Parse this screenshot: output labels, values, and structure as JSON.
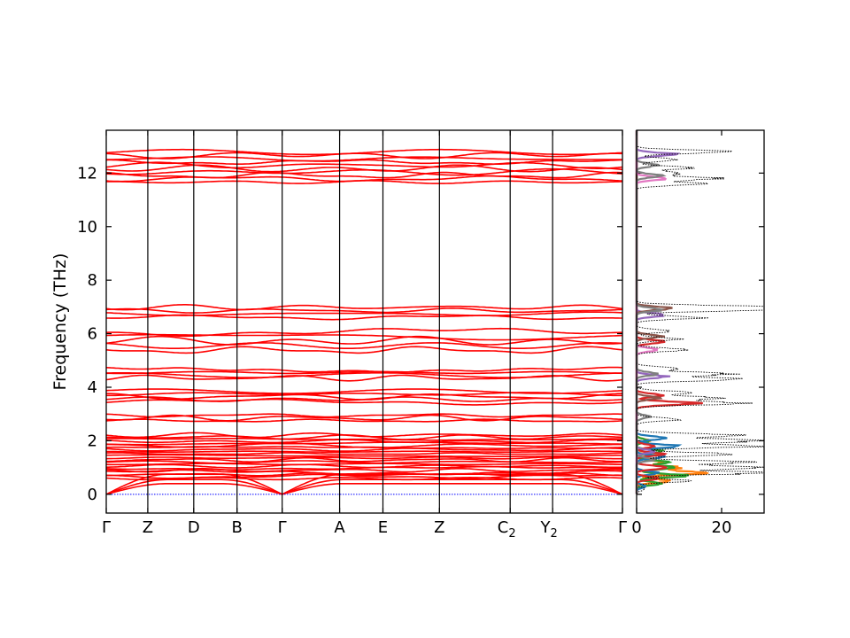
{
  "chart_data": [
    {
      "type": "line",
      "panel": "phonon-band-structure",
      "ylabel": "Frequency (THz)",
      "ylim": [
        -0.7,
        13.6
      ],
      "yticks": [
        0,
        2,
        4,
        6,
        8,
        10,
        12
      ],
      "ytick_labels": [
        "0",
        "2",
        "4",
        "6",
        "8",
        "10",
        "12"
      ],
      "xticks": [
        {
          "label": "Γ",
          "sub": "",
          "pos": 0.0
        },
        {
          "label": "Z",
          "sub": "",
          "pos": 0.0805
        },
        {
          "label": "D",
          "sub": "",
          "pos": 0.1695
        },
        {
          "label": "B",
          "sub": "",
          "pos": 0.2534
        },
        {
          "label": "Γ",
          "sub": "",
          "pos": 0.3408
        },
        {
          "label": "A",
          "sub": "",
          "pos": 0.4521
        },
        {
          "label": "E",
          "sub": "",
          "pos": 0.536
        },
        {
          "label": "Z",
          "sub": "",
          "pos": 0.6455
        },
        {
          "label": "C",
          "sub": "2",
          "pos": 0.7825
        },
        {
          "label": "Y",
          "sub": "2",
          "pos": 0.8647
        },
        {
          "label": "Γ",
          "sub": "",
          "pos": 1.0
        }
      ],
      "band_color": "#ff0000",
      "zero_line_color": "#0000ff",
      "band_groups": [
        {
          "range": [
            11.6,
            12.85
          ],
          "count": 10
        },
        {
          "range": [
            6.55,
            7.05
          ],
          "count": 4
        },
        {
          "range": [
            5.3,
            6.15
          ],
          "count": 5
        },
        {
          "range": [
            4.3,
            4.7
          ],
          "count": 4
        },
        {
          "range": [
            3.4,
            3.9
          ],
          "count": 5
        },
        {
          "range": [
            2.7,
            3.0
          ],
          "count": 3
        },
        {
          "range": [
            0.55,
            2.25
          ],
          "count": 22
        }
      ],
      "acoustic_branches": [
        {
          "gamma": 0.0,
          "zone": 0.4
        },
        {
          "gamma": 0.0,
          "zone": 0.55
        },
        {
          "gamma": 0.0,
          "zone": 0.75
        }
      ]
    },
    {
      "type": "line",
      "panel": "partial-density-of-states",
      "xlim": [
        0,
        30
      ],
      "xticks": [
        0,
        20
      ],
      "xtick_labels": [
        "0",
        "20"
      ],
      "ylim": [
        -0.7,
        13.6
      ],
      "total_dos_color": "#000000",
      "total_dos": {
        "y": [
          0.2,
          0.5,
          0.8,
          1.0,
          1.2,
          1.5,
          1.8,
          2.0,
          2.2,
          2.8,
          3.4,
          3.6,
          3.8,
          4.3,
          4.5,
          4.7,
          5.4,
          5.8,
          6.1,
          6.6,
          6.9,
          7.0,
          11.6,
          11.8,
          12.0,
          12.2,
          12.5,
          12.8
        ],
        "x": [
          2,
          12,
          30,
          28,
          26,
          24,
          30,
          29,
          25,
          10,
          25,
          20,
          12,
          26,
          22,
          10,
          12,
          10,
          8,
          15,
          30,
          27,
          15,
          19,
          10,
          13,
          10,
          22
        ]
      },
      "projected_dos": [
        {
          "color": "#ff7f0e",
          "y": [
            0.5,
            0.8,
            1.0,
            1.2,
            1.5,
            2.0
          ],
          "x": [
            8,
            17,
            10,
            6,
            5,
            3
          ]
        },
        {
          "color": "#2ca02c",
          "y": [
            0.4,
            0.7,
            1.0,
            1.2,
            1.6,
            2.0
          ],
          "x": [
            6,
            12,
            9,
            7,
            6,
            3
          ]
        },
        {
          "color": "#1f77b4",
          "y": [
            0.3,
            0.8,
            1.4,
            1.8,
            2.1
          ],
          "x": [
            2,
            5,
            6,
            10,
            7
          ]
        },
        {
          "color": "#d62728",
          "y": [
            0.6,
            1.0,
            1.5,
            1.8,
            3.4,
            3.7,
            5.7
          ],
          "x": [
            5,
            7,
            6,
            4,
            14,
            6,
            7
          ]
        },
        {
          "color": "#9467bd",
          "y": [
            1.6,
            4.4,
            6.7,
            12.7
          ],
          "x": [
            4,
            7,
            7,
            9
          ]
        },
        {
          "color": "#8c564b",
          "y": [
            3.6,
            5.9,
            6.95
          ],
          "x": [
            5,
            6,
            8
          ]
        },
        {
          "color": "#e377c2",
          "y": [
            5.4,
            11.8
          ],
          "x": [
            5,
            7
          ]
        },
        {
          "color": "#7f7f7f",
          "y": [
            1.3,
            2.9,
            4.5,
            6.9,
            11.9,
            12.3
          ],
          "x": [
            4,
            3,
            5,
            6,
            6,
            5
          ]
        }
      ]
    }
  ]
}
